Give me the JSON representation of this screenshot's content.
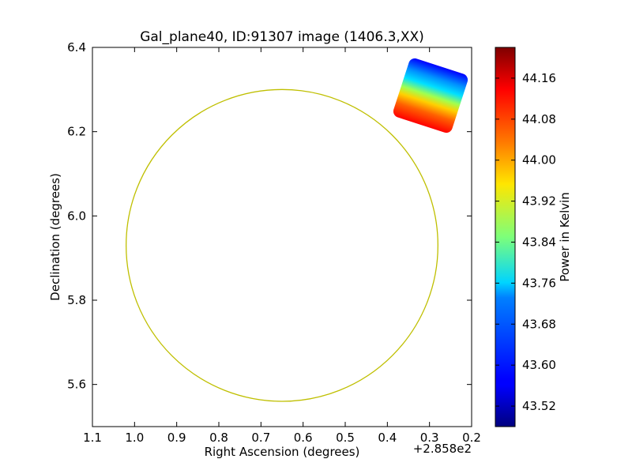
{
  "chart_data": {
    "type": "heatmap",
    "title": "Gal_plane40, ID:91307 image (1406.3,XX)",
    "xlabel": "Right Ascension (degrees)",
    "ylabel": "Declination (degrees)",
    "x_offset_label": "+2.858e2",
    "xlim": [
      1.1,
      0.2
    ],
    "ylim": [
      5.5,
      6.4
    ],
    "x_ticks": [
      "1.1",
      "1.0",
      "0.9",
      "0.8",
      "0.7",
      "0.6",
      "0.5",
      "0.4",
      "0.3",
      "0.2"
    ],
    "y_ticks": [
      "5.6",
      "5.8",
      "6.0",
      "6.2",
      "6.4"
    ],
    "circle": {
      "center": [
        0.65,
        5.93
      ],
      "radius": 0.37,
      "color": "#bfbf00"
    },
    "image_patch": {
      "center": [
        0.28,
        6.25
      ],
      "colormap": "jet",
      "description_values": {
        "top": 43.56,
        "middle": 43.96,
        "bottom": 44.2
      }
    },
    "colorbar": {
      "label": "Power in Kelvin",
      "vmin": 43.48,
      "vmax": 44.22,
      "ticks": [
        "43.52",
        "43.60",
        "43.68",
        "43.76",
        "43.84",
        "43.92",
        "44.00",
        "44.08",
        "44.16"
      ]
    },
    "grid": false
  }
}
